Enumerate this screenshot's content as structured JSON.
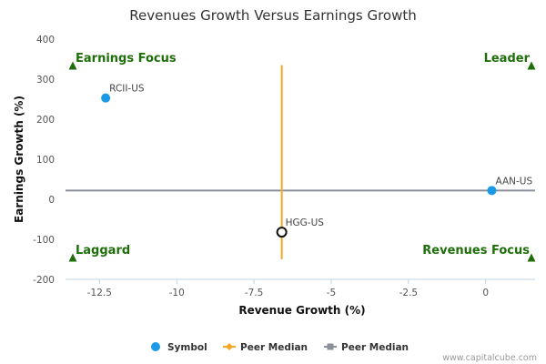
{
  "chart_data": {
    "type": "scatter",
    "title": "Revenues Growth Versus Earnings Growth",
    "xlabel": "Revenue Growth (%)",
    "ylabel": "Earnings Growth (%)",
    "xlim": [
      -13.6,
      1.6
    ],
    "ylim": [
      -200,
      400
    ],
    "x_ticks": [
      -12.5,
      -10,
      -7.5,
      -5,
      -2.5,
      0
    ],
    "x_tick_labels": [
      "-12.5",
      "-10",
      "-7.5",
      "-5",
      "-2.5",
      "0"
    ],
    "y_ticks": [
      -200,
      -100,
      0,
      100,
      200,
      300,
      400
    ],
    "y_tick_labels": [
      "-200",
      "-100",
      "0",
      "100",
      "200",
      "300",
      "400"
    ],
    "grid": false,
    "points": [
      {
        "label": "RCII-US",
        "x": -12.3,
        "y": 253,
        "style": "filled",
        "color": "#1a9ae6"
      },
      {
        "label": "AAN-US",
        "x": 0.2,
        "y": 22,
        "style": "filled",
        "color": "#1a9ae6"
      },
      {
        "label": "HGG-US",
        "x": -6.6,
        "y": -82,
        "style": "hollow",
        "color": "#111111"
      }
    ],
    "peer_median_revenue": {
      "x": -6.6,
      "y_range": [
        -150,
        335
      ],
      "color": "#f5a623"
    },
    "peer_median_earnings": {
      "y": 22,
      "x_range": [
        -13.6,
        1.6
      ],
      "color": "#8a8f99"
    },
    "quadrants": [
      {
        "label": "Earnings Focus",
        "position": "top-left"
      },
      {
        "label": "Leader",
        "position": "top-right"
      },
      {
        "label": "Laggard",
        "position": "bottom-left"
      },
      {
        "label": "Revenues Focus",
        "position": "bottom-right"
      }
    ],
    "quadrant_color": "#1e6e0a",
    "legend": {
      "placement": "bottom-center",
      "items": [
        {
          "label": "Symbol",
          "marker": "circle",
          "color": "#1a9ae6"
        },
        {
          "label": "Peer Median",
          "marker": "diamond-line",
          "color": "#f5a623"
        },
        {
          "label": "Peer Median",
          "marker": "square-line",
          "color": "#8a8f99"
        }
      ]
    },
    "credit": "www.capitalcube.com"
  }
}
